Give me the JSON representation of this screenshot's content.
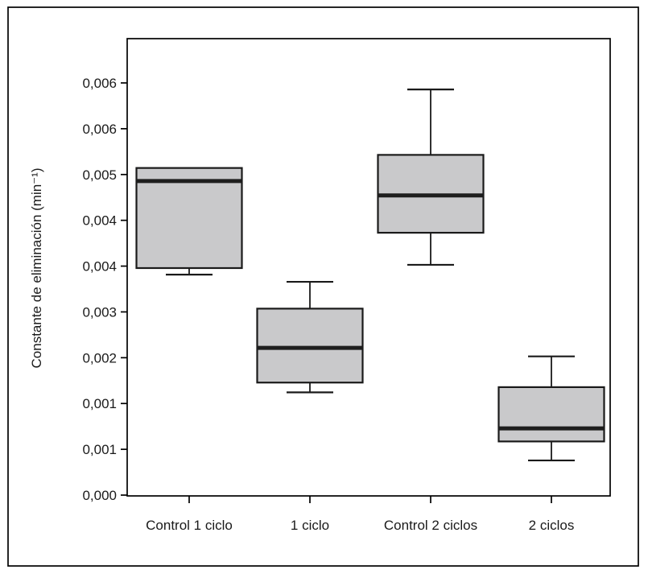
{
  "figure": {
    "background": "#ffffff",
    "frame_color": "#000000"
  },
  "chart_data": {
    "type": "boxplot",
    "title": "",
    "xlabel": "",
    "ylabel": "Constante de eliminación (min⁻¹)",
    "categories": [
      "Control 1 ciclo",
      "1 ciclo",
      "Control 2 ciclos",
      "2 ciclos"
    ],
    "series": [
      {
        "name": "Control 1 ciclo",
        "whisker_low": 0.00337,
        "q1": 0.00347,
        "median": 0.0048,
        "q3": 0.005,
        "whisker_high": 0.005
      },
      {
        "name": "1 ciclo",
        "whisker_low": 0.00157,
        "q1": 0.00172,
        "median": 0.00225,
        "q3": 0.00285,
        "whisker_high": 0.00326
      },
      {
        "name": "Control 2 ciclos",
        "whisker_low": 0.00352,
        "q1": 0.00401,
        "median": 0.00458,
        "q3": 0.0052,
        "whisker_high": 0.0062
      },
      {
        "name": "2 ciclos",
        "whisker_low": 0.00053,
        "q1": 0.00082,
        "median": 0.00102,
        "q3": 0.00165,
        "whisker_high": 0.00212
      }
    ],
    "y_axis": {
      "range": [
        0,
        0.00698
      ],
      "tick_step": 0.0007,
      "tick_values": [
        0,
        0.0007,
        0.0014,
        0.0021,
        0.0028,
        0.0035,
        0.0042,
        0.0049,
        0.0056,
        0.0063
      ],
      "tick_labels": [
        "0,000",
        "0,001",
        "0,001",
        "0,002",
        "0,003",
        "0,004",
        "0,004",
        "0,005",
        "0,006",
        "0,006"
      ]
    },
    "grid": false,
    "legend": null,
    "style": {
      "box_fill": "#c9c9cb",
      "box_border": "#1a1a1a",
      "median_color": "#1e1e1e",
      "whisker_color": "#1a1a1a",
      "axis_color": "#000000",
      "text_color": "#1a1a1a"
    }
  }
}
